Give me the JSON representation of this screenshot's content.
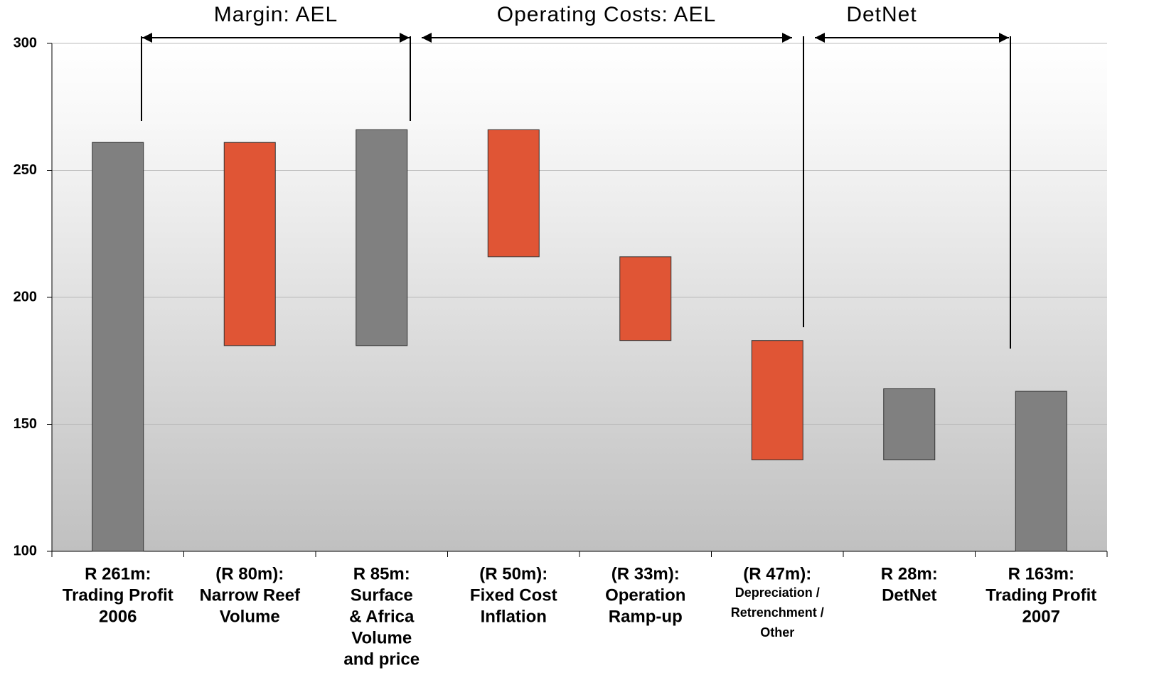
{
  "chart_data": {
    "type": "waterfall",
    "categories": [
      [
        "Trading Profit",
        "2006"
      ],
      [
        "Narrow Reef",
        "Volume"
      ],
      [
        "Surface",
        "& Africa",
        "Volume",
        "and price"
      ],
      [
        "Fixed Cost",
        "Inflation"
      ],
      [
        "Operation",
        "Ramp-up"
      ],
      [
        "Depreciation /",
        "Retrenchment /",
        "Other"
      ],
      [
        "DetNet"
      ],
      [
        "Trading Profit",
        "2007"
      ]
    ],
    "values": [
      261,
      -80,
      85,
      -50,
      -33,
      -47,
      28,
      163
    ],
    "value_labels": [
      "R 261m:",
      "(R 80m):",
      "R 85m:",
      "(R 50m):",
      "(R 33m):",
      "(R 47m):",
      "R 28m:",
      "R 163m:"
    ],
    "measure": [
      "absolute",
      "relative",
      "relative",
      "relative",
      "relative",
      "relative",
      "relative",
      "absolute"
    ],
    "colors": {
      "increase": "#808080",
      "decrease": "#e05535",
      "total": "#808080"
    },
    "groups": [
      {
        "label": "Margin: AEL"
      },
      {
        "label": "Operating Costs: AEL"
      },
      {
        "label": "DetNet"
      }
    ],
    "ylim": [
      100,
      300
    ],
    "yticks": [
      100,
      150,
      200,
      250,
      300
    ],
    "grid": true
  }
}
